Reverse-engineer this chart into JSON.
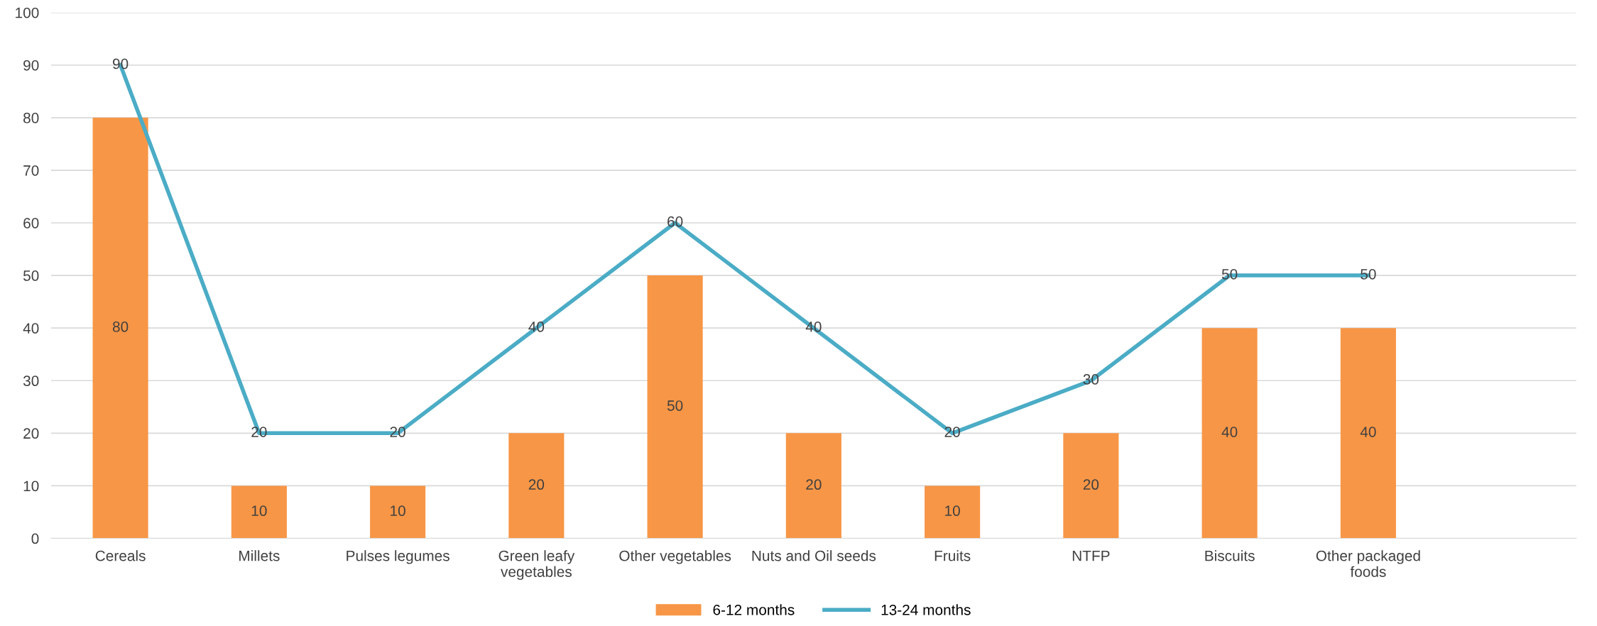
{
  "chart_data": {
    "type": "bar",
    "categories": [
      "Cereals",
      "Millets",
      "Pulses legumes",
      "Green leafy\nvegetables",
      "Other vegetables",
      "Nuts and Oil seeds",
      "Fruits",
      "NTFP",
      "Biscuits",
      "Other packaged\nfoods",
      null
    ],
    "series": [
      {
        "name": "6-12 months",
        "color": "#f79646",
        "values": [
          80,
          10,
          10,
          20,
          50,
          20,
          10,
          20,
          40,
          40,
          null
        ]
      },
      {
        "name": "13-24 months",
        "type": "line",
        "color": "#4bacc6",
        "values": [
          90,
          20,
          20,
          40,
          60,
          40,
          20,
          30,
          50,
          50,
          null
        ]
      }
    ],
    "ylim": [
      0,
      100
    ],
    "yticks": [
      0,
      10,
      20,
      30,
      40,
      50,
      60,
      70,
      80,
      90,
      100
    ],
    "grid": "y",
    "legend": "bottom",
    "data_labels": true,
    "marker": "none",
    "line_style": "solid"
  }
}
